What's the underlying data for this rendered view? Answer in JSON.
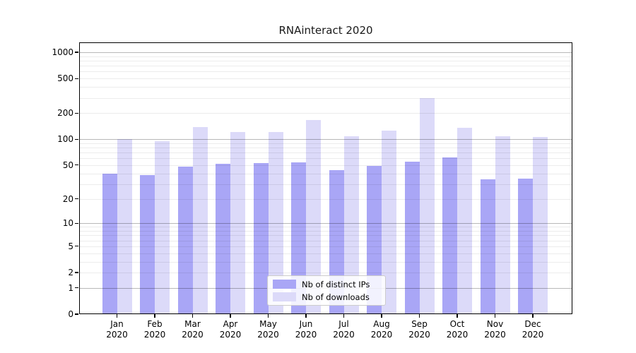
{
  "chart_data": {
    "type": "bar",
    "title": "RNAinteract 2020",
    "scale": "log1p",
    "ylim": [
      0,
      1000
    ],
    "yticks": [
      1000,
      500,
      200,
      100,
      50,
      20,
      10,
      5,
      2,
      1,
      0
    ],
    "grid": true,
    "categories": [
      "Jan",
      "Feb",
      "Mar",
      "Apr",
      "May",
      "Jun",
      "Jul",
      "Aug",
      "Sep",
      "Oct",
      "Nov",
      "Dec"
    ],
    "category_year": "2020",
    "series": [
      {
        "name": "Nb of distinct IPs",
        "color": "#a9a6f6",
        "values": [
          40,
          38,
          48,
          52,
          53,
          54,
          44,
          49,
          55,
          61,
          34,
          35
        ]
      },
      {
        "name": "Nb of downloads",
        "color": "#dcdaf9",
        "values": [
          100,
          95,
          139,
          122,
          121,
          168,
          108,
          126,
          295,
          136,
          108,
          106
        ]
      }
    ],
    "legend_position": "lower center",
    "axis_color": "#000000",
    "major_grid_color": "#b5b5b5",
    "minor_grid_color": "#ebebeb"
  }
}
